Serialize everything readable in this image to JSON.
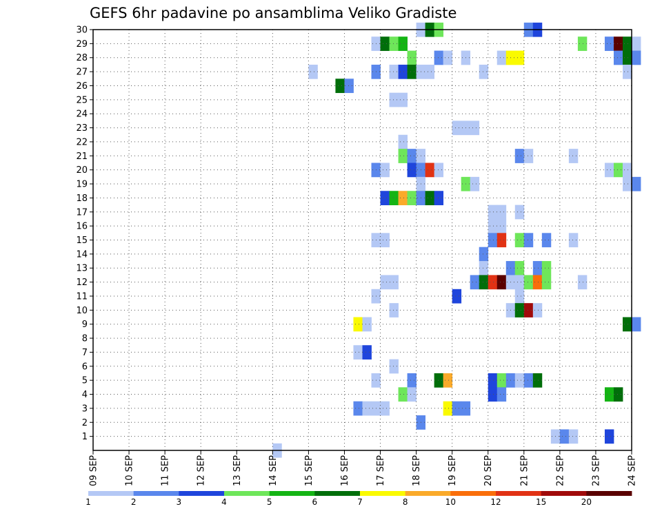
{
  "chart_data": {
    "type": "heatmap",
    "title": "GEFS 6hr padavine po ansamblima Veliko Gradiste",
    "x_labels": [
      "09 SEP",
      "10 SEP",
      "11 SEP",
      "12 SEP",
      "13 SEP",
      "14 SEP",
      "15 SEP",
      "16 SEP",
      "17 SEP",
      "18 SEP",
      "19 SEP",
      "20 SEP",
      "21 SEP",
      "22 SEP",
      "23 SEP",
      "24 SEP"
    ],
    "x_unit": "6-hour steps from 09 SEP 00Z",
    "y_labels": [
      "1",
      "2",
      "3",
      "4",
      "5",
      "6",
      "7",
      "8",
      "9",
      "10",
      "11",
      "12",
      "13",
      "14",
      "15",
      "16",
      "17",
      "18",
      "19",
      "20",
      "21",
      "22",
      "23",
      "24",
      "25",
      "26",
      "27",
      "28",
      "29",
      "30"
    ],
    "grid": true,
    "colorbar": {
      "labels": [
        "1",
        "2",
        "3",
        "4",
        "5",
        "6",
        "7",
        "8",
        "10",
        "12",
        "15",
        "20"
      ],
      "colors": [
        "#b4c8f5",
        "#5a87ec",
        "#1f45dc",
        "#6ee65a",
        "#14b414",
        "#006e0a",
        "#fafa00",
        "#faaa2a",
        "#fa6e0a",
        "#e13214",
        "#a00a0a",
        "#5a0000"
      ]
    },
    "ensemble_cells": [
      [
        30,
        18.0,
        0
      ],
      [
        30,
        18.25,
        5
      ],
      [
        30,
        18.5,
        3
      ],
      [
        30,
        21.0,
        1
      ],
      [
        30,
        21.25,
        2
      ],
      [
        29,
        16.75,
        0
      ],
      [
        29,
        17.0,
        5
      ],
      [
        29,
        17.25,
        3
      ],
      [
        29,
        17.5,
        4
      ],
      [
        29,
        22.5,
        3
      ],
      [
        29,
        23.25,
        1
      ],
      [
        29,
        23.5,
        11
      ],
      [
        29,
        23.75,
        5
      ],
      [
        29,
        24.0,
        0
      ],
      [
        28,
        17.75,
        3
      ],
      [
        28,
        18.5,
        1
      ],
      [
        28,
        18.75,
        0
      ],
      [
        28,
        19.25,
        0
      ],
      [
        28,
        20.25,
        0
      ],
      [
        28,
        20.5,
        6
      ],
      [
        28,
        20.75,
        6
      ],
      [
        28,
        23.5,
        1
      ],
      [
        28,
        23.75,
        5
      ],
      [
        28,
        24.0,
        1
      ],
      [
        27,
        15.0,
        0
      ],
      [
        27,
        16.75,
        1
      ],
      [
        27,
        17.25,
        0
      ],
      [
        27,
        17.5,
        2
      ],
      [
        27,
        17.75,
        5
      ],
      [
        27,
        18.0,
        0
      ],
      [
        27,
        18.25,
        0
      ],
      [
        27,
        19.75,
        0
      ],
      [
        27,
        23.75,
        0
      ],
      [
        26,
        15.75,
        5
      ],
      [
        26,
        16.0,
        1
      ],
      [
        25,
        17.25,
        0
      ],
      [
        25,
        17.5,
        0
      ],
      [
        23,
        19.0,
        0
      ],
      [
        23,
        19.25,
        0
      ],
      [
        23,
        19.5,
        0
      ],
      [
        22,
        17.5,
        0
      ],
      [
        21,
        17.5,
        3
      ],
      [
        21,
        17.75,
        1
      ],
      [
        21,
        18.0,
        0
      ],
      [
        21,
        20.75,
        1
      ],
      [
        21,
        21.0,
        0
      ],
      [
        21,
        22.25,
        0
      ],
      [
        20,
        16.75,
        1
      ],
      [
        20,
        17.0,
        0
      ],
      [
        20,
        17.75,
        2
      ],
      [
        20,
        18.0,
        1
      ],
      [
        20,
        18.25,
        9
      ],
      [
        20,
        18.5,
        0
      ],
      [
        20,
        23.25,
        0
      ],
      [
        20,
        23.5,
        3
      ],
      [
        20,
        23.75,
        0
      ],
      [
        19,
        18.0,
        0
      ],
      [
        19,
        19.25,
        3
      ],
      [
        19,
        19.5,
        0
      ],
      [
        19,
        23.75,
        0
      ],
      [
        19,
        24.0,
        1
      ],
      [
        18,
        17.0,
        2
      ],
      [
        18,
        17.25,
        4
      ],
      [
        18,
        17.5,
        7
      ],
      [
        18,
        17.75,
        3
      ],
      [
        18,
        18.0,
        1
      ],
      [
        18,
        18.25,
        5
      ],
      [
        18,
        18.5,
        2
      ],
      [
        17,
        20.0,
        0
      ],
      [
        17,
        20.25,
        0
      ],
      [
        17,
        20.75,
        0
      ],
      [
        16,
        20.0,
        0
      ],
      [
        16,
        20.25,
        0
      ],
      [
        15,
        16.75,
        0
      ],
      [
        15,
        17.0,
        0
      ],
      [
        15,
        20.0,
        1
      ],
      [
        15,
        20.25,
        9
      ],
      [
        15,
        20.75,
        3
      ],
      [
        15,
        21.0,
        1
      ],
      [
        15,
        21.5,
        1
      ],
      [
        15,
        22.25,
        0
      ],
      [
        14,
        19.75,
        1
      ],
      [
        13,
        19.75,
        0
      ],
      [
        13,
        20.5,
        1
      ],
      [
        13,
        20.75,
        3
      ],
      [
        13,
        21.25,
        1
      ],
      [
        13,
        21.5,
        3
      ],
      [
        12,
        17.0,
        0
      ],
      [
        12,
        17.25,
        0
      ],
      [
        12,
        19.5,
        1
      ],
      [
        12,
        19.75,
        5
      ],
      [
        12,
        20.0,
        9
      ],
      [
        12,
        20.25,
        11
      ],
      [
        12,
        20.5,
        0
      ],
      [
        12,
        20.75,
        0
      ],
      [
        12,
        21.0,
        3
      ],
      [
        12,
        21.25,
        8
      ],
      [
        12,
        21.5,
        3
      ],
      [
        12,
        22.5,
        0
      ],
      [
        11,
        16.75,
        0
      ],
      [
        11,
        19.0,
        2
      ],
      [
        11,
        20.75,
        0
      ],
      [
        10,
        17.25,
        0
      ],
      [
        10,
        20.5,
        0
      ],
      [
        10,
        20.75,
        5
      ],
      [
        10,
        21.0,
        10
      ],
      [
        10,
        21.25,
        0
      ],
      [
        9,
        16.25,
        6
      ],
      [
        9,
        16.5,
        0
      ],
      [
        9,
        23.75,
        5
      ],
      [
        9,
        24.0,
        1
      ],
      [
        7,
        16.25,
        0
      ],
      [
        7,
        16.5,
        2
      ],
      [
        6,
        17.25,
        0
      ],
      [
        5,
        16.75,
        0
      ],
      [
        5,
        17.75,
        1
      ],
      [
        5,
        18.5,
        5
      ],
      [
        5,
        18.75,
        7
      ],
      [
        5,
        20.0,
        2
      ],
      [
        5,
        20.25,
        3
      ],
      [
        5,
        20.5,
        1
      ],
      [
        5,
        20.75,
        0
      ],
      [
        5,
        21.0,
        1
      ],
      [
        5,
        21.25,
        5
      ],
      [
        4,
        17.5,
        3
      ],
      [
        4,
        17.75,
        0
      ],
      [
        4,
        20.0,
        2
      ],
      [
        4,
        20.25,
        1
      ],
      [
        4,
        23.25,
        4
      ],
      [
        4,
        23.5,
        5
      ],
      [
        3,
        16.25,
        1
      ],
      [
        3,
        16.5,
        0
      ],
      [
        3,
        16.75,
        0
      ],
      [
        3,
        17.0,
        0
      ],
      [
        3,
        18.75,
        6
      ],
      [
        3,
        19.0,
        1
      ],
      [
        3,
        19.25,
        1
      ],
      [
        2,
        18.0,
        1
      ],
      [
        1,
        21.75,
        0
      ],
      [
        1,
        22.0,
        1
      ],
      [
        1,
        22.25,
        0
      ],
      [
        1,
        23.25,
        2
      ],
      [
        0,
        14.0,
        0
      ]
    ]
  }
}
